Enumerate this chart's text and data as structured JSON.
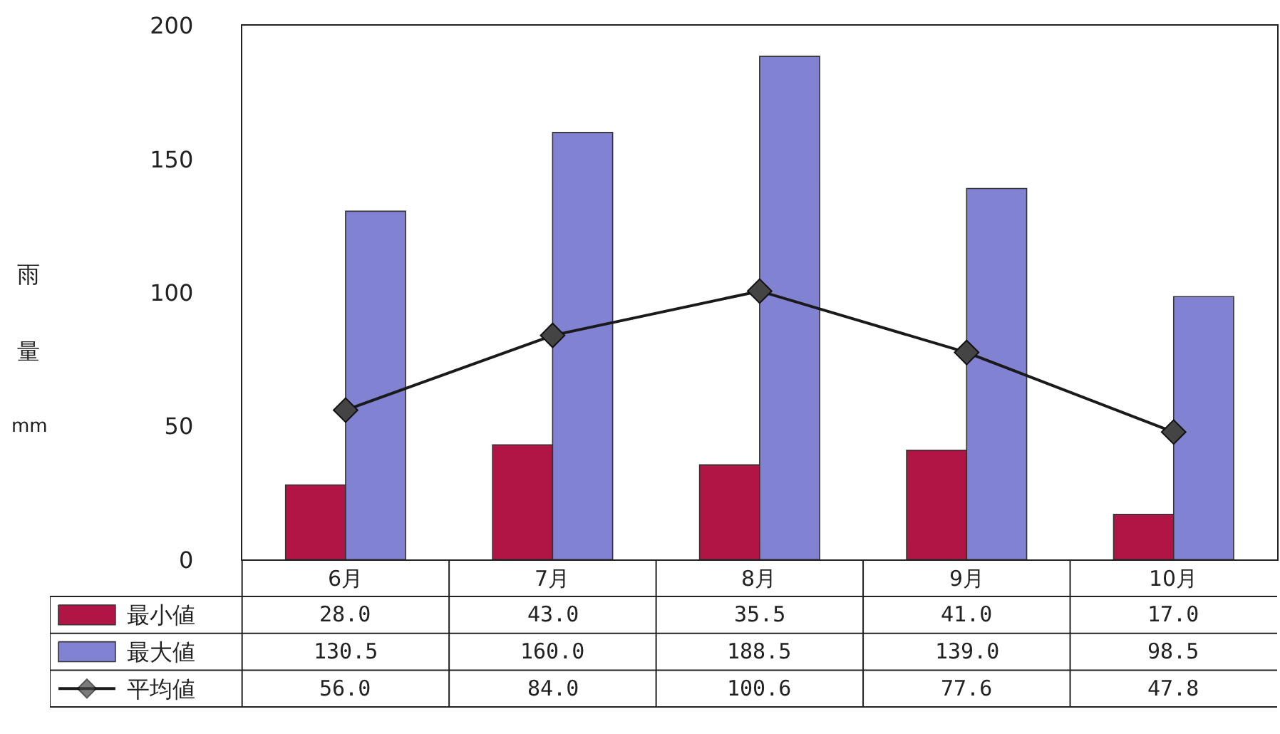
{
  "chart_data": {
    "type": "bar",
    "ylabel": "雨量mm",
    "categories": [
      "6月",
      "7月",
      "8月",
      "9月",
      "10月"
    ],
    "series": [
      {
        "name": "最小値",
        "color": "#b01545",
        "values": [
          28.0,
          43.0,
          35.5,
          41.0,
          17.0
        ],
        "value_labels": [
          "28.0",
          "43.0",
          "35.5",
          "41.0",
          "17.0"
        ]
      },
      {
        "name": "最大値",
        "color": "#8282d2",
        "values": [
          130.5,
          160.0,
          188.5,
          139.0,
          98.5
        ],
        "value_labels": [
          "130.5",
          "160.0",
          "188.5",
          "139.0",
          "98.5"
        ]
      },
      {
        "name": "平均値",
        "type": "line",
        "color": "#1a1a1a",
        "marker": "diamond",
        "values": [
          56.0,
          84.0,
          100.6,
          77.6,
          47.8
        ],
        "value_labels": [
          "56.0",
          "84.0",
          "100.6",
          "77.6",
          "47.8"
        ]
      }
    ],
    "ylim": [
      0,
      200
    ],
    "yticks": [
      0,
      50,
      100,
      150,
      200
    ],
    "legend": "bottom left"
  }
}
